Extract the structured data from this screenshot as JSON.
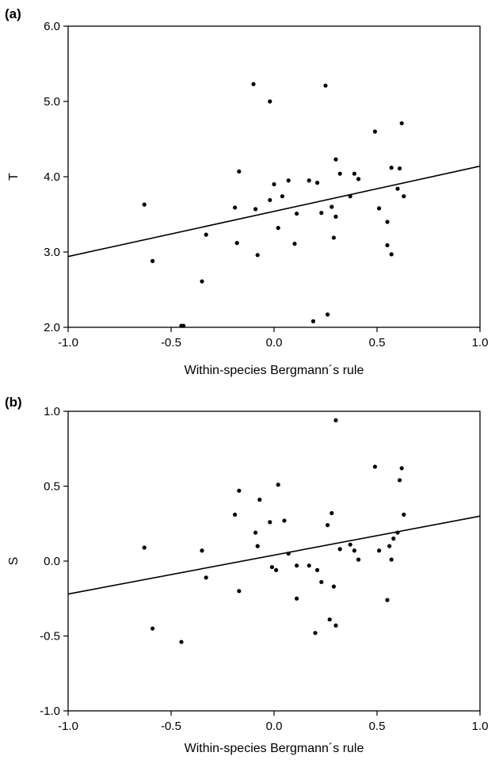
{
  "chart_data": [
    {
      "type": "scatter",
      "panel_label": "(a)",
      "xlabel": "Within-species Bergmann´s rule",
      "ylabel": "T",
      "xlim": [
        -1.0,
        1.0
      ],
      "ylim": [
        2.0,
        6.0
      ],
      "xticks": [
        "-1.0",
        "-0.5",
        "0.0",
        "0.5",
        "1.0"
      ],
      "yticks": [
        "2.0",
        "3.0",
        "4.0",
        "5.0",
        "6.0"
      ],
      "grid": false,
      "trendline": [
        [
          -1.0,
          2.94
        ],
        [
          1.0,
          4.14
        ]
      ],
      "points": [
        [
          -0.63,
          3.63
        ],
        [
          -0.59,
          2.88
        ],
        [
          -0.45,
          2.02
        ],
        [
          -0.44,
          2.02
        ],
        [
          -0.35,
          2.61
        ],
        [
          -0.33,
          3.23
        ],
        [
          -0.19,
          3.59
        ],
        [
          -0.18,
          3.12
        ],
        [
          -0.17,
          4.07
        ],
        [
          -0.1,
          5.23
        ],
        [
          -0.09,
          3.57
        ],
        [
          -0.08,
          2.96
        ],
        [
          -0.02,
          3.69
        ],
        [
          -0.02,
          5.0
        ],
        [
          0.0,
          3.9
        ],
        [
          0.02,
          3.32
        ],
        [
          0.04,
          3.74
        ],
        [
          0.07,
          3.95
        ],
        [
          0.1,
          3.11
        ],
        [
          0.11,
          3.51
        ],
        [
          0.17,
          3.95
        ],
        [
          0.19,
          2.08
        ],
        [
          0.21,
          3.92
        ],
        [
          0.23,
          3.52
        ],
        [
          0.25,
          5.21
        ],
        [
          0.26,
          2.17
        ],
        [
          0.28,
          3.6
        ],
        [
          0.29,
          3.19
        ],
        [
          0.3,
          3.47
        ],
        [
          0.3,
          4.23
        ],
        [
          0.32,
          4.04
        ],
        [
          0.37,
          3.74
        ],
        [
          0.39,
          4.04
        ],
        [
          0.41,
          3.97
        ],
        [
          0.49,
          4.6
        ],
        [
          0.51,
          3.58
        ],
        [
          0.55,
          3.09
        ],
        [
          0.55,
          3.4
        ],
        [
          0.57,
          2.97
        ],
        [
          0.57,
          4.12
        ],
        [
          0.6,
          3.84
        ],
        [
          0.61,
          4.11
        ],
        [
          0.62,
          4.71
        ],
        [
          0.63,
          3.74
        ]
      ]
    },
    {
      "type": "scatter",
      "panel_label": "(b)",
      "xlabel": "Within-species Bergmann´s rule",
      "ylabel": "S",
      "xlim": [
        -1.0,
        1.0
      ],
      "ylim": [
        -1.0,
        1.0
      ],
      "xticks": [
        "-1.0",
        "-0.5",
        "0.0",
        "0.5",
        "1.0"
      ],
      "yticks": [
        "-1.0",
        "-0.5",
        "0.0",
        "0.5",
        "1.0"
      ],
      "grid": false,
      "trendline": [
        [
          -1.0,
          -0.22
        ],
        [
          1.0,
          0.3
        ]
      ],
      "points": [
        [
          -0.63,
          0.09
        ],
        [
          -0.59,
          -0.45
        ],
        [
          -0.45,
          -0.54
        ],
        [
          -0.35,
          0.07
        ],
        [
          -0.33,
          -0.11
        ],
        [
          -0.19,
          0.31
        ],
        [
          -0.17,
          0.47
        ],
        [
          -0.17,
          -0.2
        ],
        [
          -0.09,
          0.19
        ],
        [
          -0.08,
          0.1
        ],
        [
          -0.07,
          0.41
        ],
        [
          -0.02,
          0.26
        ],
        [
          -0.01,
          -0.04
        ],
        [
          0.01,
          -0.06
        ],
        [
          0.02,
          0.51
        ],
        [
          0.05,
          0.27
        ],
        [
          0.07,
          0.05
        ],
        [
          0.11,
          -0.03
        ],
        [
          0.11,
          -0.25
        ],
        [
          0.17,
          -0.03
        ],
        [
          0.2,
          -0.48
        ],
        [
          0.21,
          -0.06
        ],
        [
          0.23,
          -0.14
        ],
        [
          0.26,
          0.24
        ],
        [
          0.27,
          -0.39
        ],
        [
          0.28,
          0.32
        ],
        [
          0.29,
          -0.17
        ],
        [
          0.3,
          0.94
        ],
        [
          0.3,
          -0.43
        ],
        [
          0.32,
          0.08
        ],
        [
          0.37,
          0.11
        ],
        [
          0.39,
          0.07
        ],
        [
          0.41,
          0.01
        ],
        [
          0.49,
          0.63
        ],
        [
          0.51,
          0.07
        ],
        [
          0.55,
          -0.26
        ],
        [
          0.56,
          0.1
        ],
        [
          0.57,
          0.01
        ],
        [
          0.58,
          0.15
        ],
        [
          0.6,
          0.19
        ],
        [
          0.61,
          0.54
        ],
        [
          0.62,
          0.62
        ],
        [
          0.63,
          0.31
        ]
      ]
    }
  ]
}
